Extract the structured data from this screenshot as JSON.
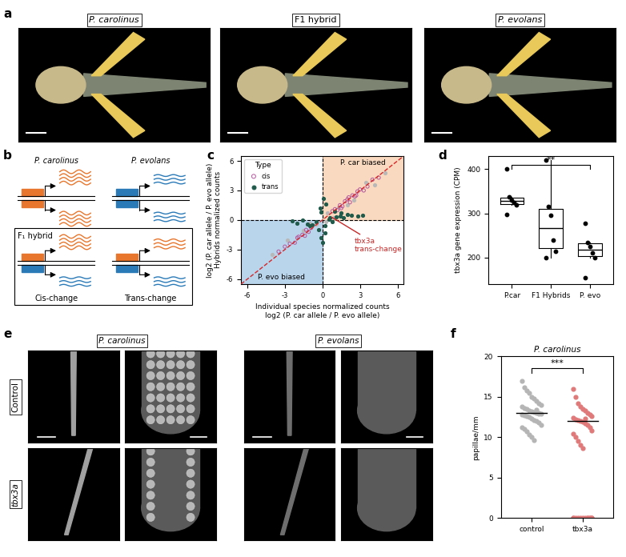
{
  "figure": {
    "panel_labels": [
      "a",
      "b",
      "c",
      "d",
      "e",
      "f"
    ],
    "a": {
      "titles": [
        "P. carolinus",
        "F1 hybrid",
        "P. evolans"
      ]
    },
    "b": {
      "species": [
        "P. carolinus",
        "P. evolans"
      ],
      "hybrid": "F₁ hybrid",
      "changes": [
        "Cis-change",
        "Trans-change"
      ]
    },
    "e": {
      "columns": [
        "P. carolinus",
        "P. evolans"
      ],
      "rows": [
        "Control",
        "tbx3a"
      ]
    }
  },
  "chart_data": [
    {
      "type": "scatter",
      "xlabel": "Individual species normalized counts\nlog2 (P. car allele / P. evo allele)",
      "ylabel": "log2 (P. car allele / P. evo allele)\nHybrids normalized counts",
      "xlim": [
        -6.5,
        6.5
      ],
      "ylim": [
        -6.5,
        6.5
      ],
      "xticks": [
        -6,
        -3,
        0,
        3,
        6
      ],
      "yticks": [
        -6,
        -3,
        0,
        3,
        6
      ],
      "legend": "upper left",
      "legend_title": "Type",
      "hlines": [
        0
      ],
      "vlines": [
        0
      ],
      "diagonal": {
        "color": "#d62728",
        "line_style": "dashed"
      },
      "regions": [
        {
          "label": "P. car biased",
          "color": "#f9d9bf",
          "x_range": [
            0,
            6.5
          ],
          "y_range": [
            0,
            6.5
          ]
        },
        {
          "label": "P. evo biased",
          "color": "#b9d5ec",
          "x_range": [
            -6.5,
            0
          ],
          "y_range": [
            -6.5,
            0
          ]
        }
      ],
      "annotation": {
        "text": "tbx3a\ntrans-change",
        "point": [
          0.6,
          0.4
        ],
        "color": "#c62828"
      },
      "series": [
        {
          "color": "#b8b8b8",
          "marker": "circle",
          "x": [
            -4.0,
            -2.8,
            -1.0,
            0.4,
            1.3,
            2.5,
            3.5,
            5.0,
            -0.5,
            0.9,
            -1.5,
            2.0,
            4.2,
            0.3
          ],
          "y": [
            -3.5,
            -2.0,
            -0.3,
            0.7,
            1.3,
            2.0,
            3.8,
            4.8,
            -0.4,
            0.2,
            -1.1,
            1.5,
            3.6,
            -0.2
          ]
        },
        {
          "name": "cis",
          "color": "#b5589e",
          "marker": "open_circle",
          "x": [
            -3.5,
            -3.0,
            -2.6,
            -2.2,
            -1.9,
            -1.6,
            -1.3,
            -1.1,
            -0.9,
            0.8,
            1.0,
            1.2,
            1.4,
            1.6,
            1.8,
            2.0,
            2.2,
            2.4,
            2.6,
            2.8,
            3.0,
            3.3,
            3.6,
            4.0,
            4.5,
            1.5,
            2.1,
            2.7,
            -2.0,
            -1.4
          ],
          "y": [
            -3.2,
            -2.7,
            -2.4,
            -2.3,
            -1.7,
            -1.5,
            -1.0,
            -1.2,
            -0.8,
            0.9,
            1.1,
            1.0,
            1.5,
            1.4,
            1.9,
            2.1,
            1.8,
            2.5,
            2.4,
            2.9,
            3.1,
            3.0,
            3.4,
            4.1,
            4.3,
            1.2,
            2.3,
            2.5,
            -1.8,
            -1.6
          ]
        },
        {
          "name": "trans",
          "color": "#1f5a4a",
          "marker": "circle",
          "x": [
            -2.4,
            -2.0,
            -1.6,
            -1.2,
            -0.8,
            -0.5,
            -0.3,
            -0.1,
            0.2,
            0.5,
            0.8,
            1.1,
            1.4,
            1.7,
            2.0,
            2.3,
            2.8,
            3.2,
            -0.2,
            0.1,
            0.3,
            0.0,
            -0.1,
            0.2,
            1.0,
            1.5,
            0.6,
            -1.0
          ],
          "y": [
            -0.1,
            -0.3,
            0.0,
            -0.4,
            -0.5,
            -0.2,
            -1.0,
            -1.8,
            -0.6,
            0.1,
            -0.2,
            0.3,
            0.4,
            0.2,
            0.6,
            0.5,
            0.4,
            0.5,
            1.2,
            2.2,
            1.6,
            -2.3,
            0.8,
            -1.3,
            0.9,
            0.7,
            0.2,
            -0.6
          ]
        }
      ]
    },
    {
      "type": "box",
      "categories": [
        "P.car",
        "F1 Hybrids",
        "P. evo"
      ],
      "values": [
        [
          400,
          338,
          330,
          325,
          320,
          298
        ],
        [
          420,
          315,
          295,
          240,
          215,
          200
        ],
        [
          278,
          235,
          225,
          210,
          200,
          155
        ]
      ],
      "ylabel": "tbx3a gene expression (CPM)",
      "ylim": [
        140,
        430
      ],
      "yticks": [
        200,
        300,
        400
      ],
      "significance": {
        "pair": [
          0,
          2
        ],
        "label": "**"
      }
    },
    {
      "type": "strip",
      "title": "P. carolinus",
      "categories": [
        "control",
        "tbx3a"
      ],
      "colors": [
        "#b5b5b5",
        "#e07a7a"
      ],
      "values": [
        [
          17.0,
          16.2,
          15.8,
          15.5,
          15.0,
          14.8,
          14.5,
          14.2,
          14.0,
          13.8,
          13.6,
          13.5,
          13.3,
          13.2,
          13.1,
          13.0,
          13.0,
          12.9,
          12.8,
          12.7,
          12.6,
          12.5,
          12.3,
          12.1,
          12.0,
          11.8,
          11.5,
          11.2,
          11.0,
          10.7,
          10.3,
          10.0,
          9.6,
          13.4,
          12.9
        ],
        [
          16.0,
          15.0,
          14.2,
          13.8,
          13.5,
          13.3,
          13.0,
          12.8,
          12.6,
          12.4,
          12.2,
          12.1,
          12.0,
          11.9,
          11.7,
          11.5,
          11.2,
          10.8,
          10.4,
          10.0,
          9.5,
          9.0,
          8.6,
          12.3,
          0,
          0,
          0,
          0,
          0,
          0,
          0,
          0,
          0,
          0,
          0,
          0,
          0
        ]
      ],
      "medians": [
        13,
        12
      ],
      "ylabel": "papillae/mm",
      "ylim": [
        0,
        20
      ],
      "yticks": [
        0,
        5,
        10,
        15,
        20
      ],
      "significance": {
        "pair": [
          0,
          1
        ],
        "label": "***"
      }
    }
  ]
}
